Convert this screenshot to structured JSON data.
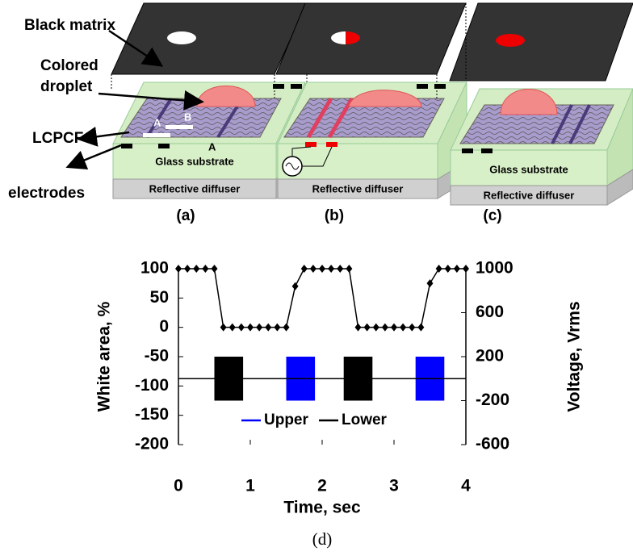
{
  "diagram": {
    "labels": {
      "black_matrix": "Black matrix",
      "colored": "Colored",
      "droplet": "droplet",
      "lcpcf": "LCPCF",
      "electrodes": "electrodes"
    },
    "panels": [
      {
        "label": "(a)",
        "glass": "Glass substrate",
        "diffuser": "Reflective diffuser",
        "marks": [
          "A",
          "B",
          "A"
        ]
      },
      {
        "label": "(b)",
        "diffuser": "Reflective diffuser"
      },
      {
        "label": "(c)",
        "glass": "Glass substrate",
        "diffuser": "Reflective diffuser"
      }
    ]
  },
  "chart_data": {
    "type": "line",
    "xlabel": "Time, sec",
    "ylabel": "White area, %",
    "y2label": "Voltage, Vrms",
    "x": [
      0,
      0.125,
      0.25,
      0.375,
      0.5,
      0.625,
      0.75,
      0.875,
      1,
      1.125,
      1.25,
      1.375,
      1.5,
      1.625,
      1.75,
      1.875,
      2,
      2.125,
      2.25,
      2.375,
      2.5,
      2.625,
      2.75,
      2.875,
      3,
      3.125,
      3.25,
      3.375,
      3.5,
      3.625,
      3.75,
      3.875,
      4
    ],
    "values": [
      100,
      100,
      100,
      100,
      100,
      0,
      0,
      0,
      0,
      0,
      0,
      0,
      0,
      70,
      100,
      100,
      100,
      100,
      100,
      100,
      0,
      0,
      0,
      0,
      0,
      0,
      0,
      0,
      75,
      100,
      100,
      100,
      100
    ],
    "color": "#000000",
    "marker": "diamond",
    "series": [
      {
        "name": "Upper",
        "color": "#0000ff",
        "axis": "y2",
        "amplitude": 200,
        "on": [
          [
            1.5,
            1.9
          ],
          [
            3.3,
            3.7
          ]
        ]
      },
      {
        "name": "Lower",
        "color": "#000000",
        "axis": "y2",
        "amplitude": 200,
        "on": [
          [
            0.5,
            0.9
          ],
          [
            2.3,
            2.7
          ]
        ]
      }
    ],
    "xlim": [
      0,
      4
    ],
    "xticks": [
      0,
      1,
      2,
      3,
      4
    ],
    "ylim": [
      -200,
      100
    ],
    "yticks": [
      -200,
      -150,
      -100,
      -50,
      0,
      50,
      100
    ],
    "y2lim": [
      -600,
      1000
    ],
    "y2ticks": [
      -600,
      -200,
      200,
      600,
      1000
    ],
    "legend": "lower center"
  },
  "caption": "(d)"
}
